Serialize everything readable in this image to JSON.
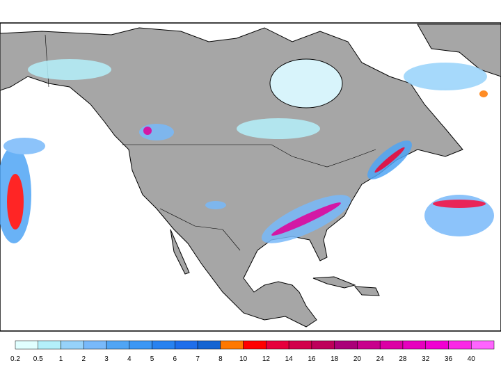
{
  "legend": {
    "labels": [
      0.2,
      0.5,
      1,
      2,
      3,
      4,
      5,
      6,
      7,
      8,
      10,
      12,
      14,
      16,
      18,
      20,
      24,
      28,
      32,
      36,
      40
    ],
    "colors": [
      "#e1ffff",
      "#b4f0fa",
      "#96d2fa",
      "#78b9fa",
      "#50a5f5",
      "#3c97f5",
      "#2882f0",
      "#1e6eeb",
      "#1464d2",
      "#ff7800",
      "#ff0000",
      "#e6003c",
      "#d2004b",
      "#be005a",
      "#aa0078",
      "#c8008c",
      "#dc00a5",
      "#e600be",
      "#f000d2",
      "#fa28e6",
      "#ff64ff"
    ]
  }
}
